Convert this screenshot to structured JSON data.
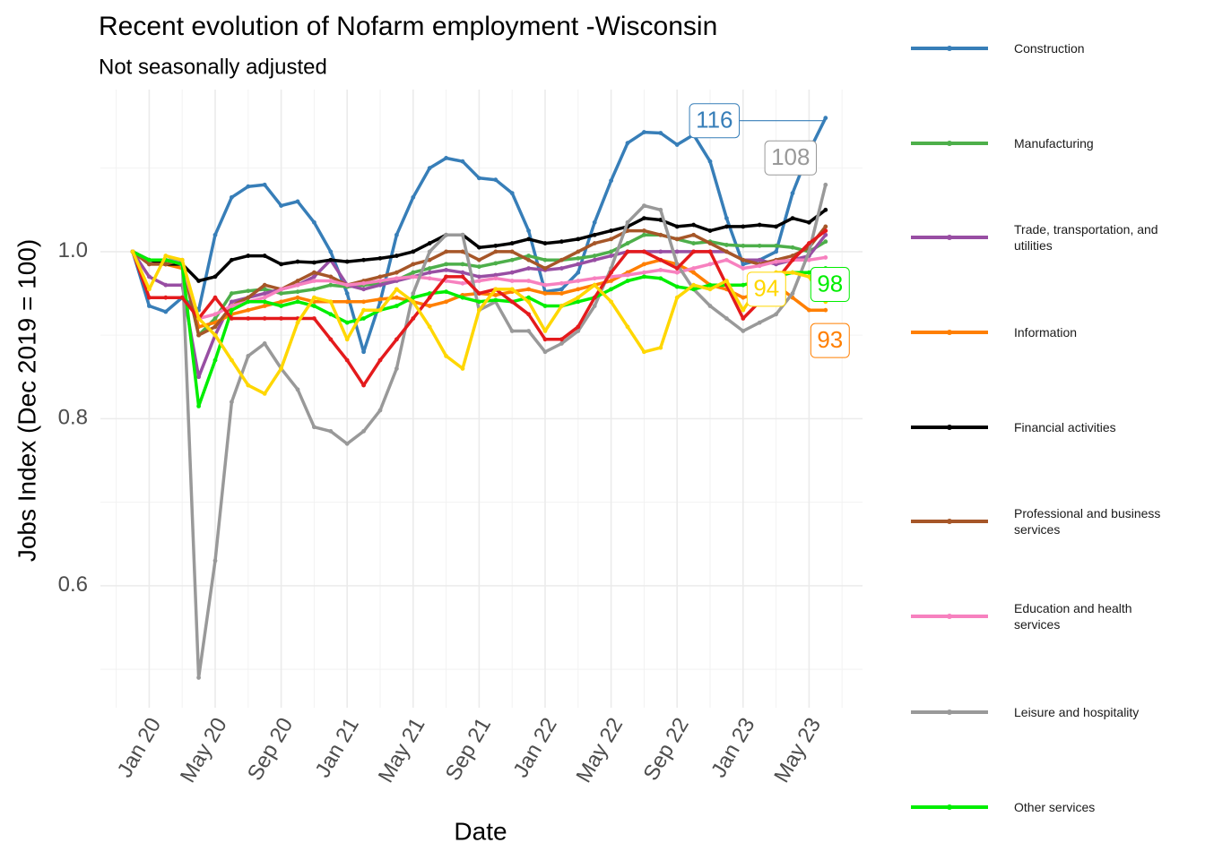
{
  "chart_data": {
    "type": "line",
    "title": "Recent evolution of Nofarm employment -Wisconsin",
    "subtitle": "Not seasonally adjusted",
    "x_label": "Date",
    "y_label": "Jobs Index (Dec 2019 = 100)",
    "x": [
      "2019-12",
      "2020-01",
      "2020-02",
      "2020-03",
      "2020-04",
      "2020-05",
      "2020-06",
      "2020-07",
      "2020-08",
      "2020-09",
      "2020-10",
      "2020-11",
      "2020-12",
      "2021-01",
      "2021-02",
      "2021-03",
      "2021-04",
      "2021-05",
      "2021-06",
      "2021-07",
      "2021-08",
      "2021-09",
      "2021-10",
      "2021-11",
      "2021-12",
      "2022-01",
      "2022-02",
      "2022-03",
      "2022-04",
      "2022-05",
      "2022-06",
      "2022-07",
      "2022-08",
      "2022-09",
      "2022-10",
      "2022-11",
      "2022-12",
      "2023-01",
      "2023-02",
      "2023-03",
      "2023-04",
      "2023-05",
      "2023-06"
    ],
    "xticks": [
      {
        "value": "2020-01",
        "label": "Jan 20"
      },
      {
        "value": "2020-05",
        "label": "May 20"
      },
      {
        "value": "2020-09",
        "label": "Sep 20"
      },
      {
        "value": "2021-01",
        "label": "Jan 21"
      },
      {
        "value": "2021-05",
        "label": "May 21"
      },
      {
        "value": "2021-09",
        "label": "Sep 21"
      },
      {
        "value": "2022-01",
        "label": "Jan 22"
      },
      {
        "value": "2022-05",
        "label": "May 22"
      },
      {
        "value": "2022-09",
        "label": "Sep 22"
      },
      {
        "value": "2023-01",
        "label": "Jan 23"
      },
      {
        "value": "2023-05",
        "label": "May 23"
      }
    ],
    "ylim": [
      0.454,
      1.194
    ],
    "yticks": [
      0.6,
      0.8,
      {
        "value": 1,
        "label": "1.0"
      }
    ],
    "minor_yticks": [
      0.5,
      0.7,
      0.9,
      1.1
    ],
    "grid": true,
    "legend": "right",
    "series": [
      {
        "name": "Construction",
        "color": "#377eb8",
        "end_label": "116",
        "values": [
          1.0,
          0.935,
          0.928,
          0.945,
          0.93,
          1.02,
          1.065,
          1.078,
          1.08,
          1.055,
          1.06,
          1.035,
          1.0,
          0.95,
          0.88,
          0.94,
          1.02,
          1.065,
          1.1,
          1.112,
          1.108,
          1.088,
          1.086,
          1.07,
          1.025,
          0.952,
          0.955,
          0.975,
          1.035,
          1.085,
          1.13,
          1.143,
          1.142,
          1.128,
          1.14,
          1.108,
          1.04,
          0.985,
          0.99,
          1.0,
          1.07,
          1.12,
          1.16
        ]
      },
      {
        "name": "Manufacturing",
        "color": "#4daf4a",
        "values": [
          1.0,
          0.99,
          0.99,
          0.985,
          0.9,
          0.92,
          0.95,
          0.953,
          0.955,
          0.95,
          0.952,
          0.955,
          0.96,
          0.958,
          0.96,
          0.962,
          0.966,
          0.975,
          0.98,
          0.985,
          0.985,
          0.982,
          0.986,
          0.99,
          0.995,
          0.99,
          0.99,
          0.992,
          0.995,
          1.0,
          1.01,
          1.02,
          1.02,
          1.015,
          1.01,
          1.012,
          1.008,
          1.007,
          1.007,
          1.007,
          1.005,
          1.0,
          1.012
        ]
      },
      {
        "name": "Trade, transportation, and utilities",
        "color": "#984ea3",
        "values": [
          1.0,
          0.97,
          0.96,
          0.96,
          0.85,
          0.9,
          0.94,
          0.945,
          0.95,
          0.955,
          0.96,
          0.97,
          0.99,
          0.96,
          0.955,
          0.96,
          0.965,
          0.97,
          0.975,
          0.978,
          0.975,
          0.97,
          0.972,
          0.975,
          0.98,
          0.978,
          0.98,
          0.985,
          0.99,
          0.995,
          1.0,
          1.0,
          1.0,
          1.0,
          1.0,
          1.0,
          1.0,
          0.99,
          0.99,
          0.985,
          0.99,
          0.995,
          1.02
        ]
      },
      {
        "name": "Information",
        "color": "#ff7f00",
        "end_label": "93",
        "values": [
          1.0,
          0.985,
          0.985,
          0.98,
          0.91,
          0.915,
          0.925,
          0.93,
          0.935,
          0.94,
          0.945,
          0.94,
          0.94,
          0.94,
          0.94,
          0.943,
          0.945,
          0.94,
          0.935,
          0.94,
          0.948,
          0.95,
          0.948,
          0.952,
          0.955,
          0.95,
          0.95,
          0.955,
          0.96,
          0.965,
          0.975,
          0.985,
          0.99,
          0.985,
          0.975,
          0.96,
          0.955,
          0.945,
          0.95,
          0.96,
          0.945,
          0.93,
          0.93
        ]
      },
      {
        "name": "Financial activities",
        "color": "#000000",
        "values": [
          1.0,
          0.99,
          0.985,
          0.985,
          0.965,
          0.97,
          0.99,
          0.995,
          0.995,
          0.985,
          0.988,
          0.987,
          0.99,
          0.988,
          0.99,
          0.992,
          0.995,
          1.0,
          1.01,
          1.02,
          1.02,
          1.005,
          1.007,
          1.01,
          1.015,
          1.01,
          1.012,
          1.015,
          1.02,
          1.025,
          1.03,
          1.04,
          1.038,
          1.03,
          1.032,
          1.025,
          1.03,
          1.03,
          1.032,
          1.03,
          1.04,
          1.035,
          1.05
        ]
      },
      {
        "name": "Professional and business services",
        "color": "#a65628",
        "values": [
          1.0,
          0.985,
          0.985,
          0.99,
          0.9,
          0.91,
          0.935,
          0.945,
          0.96,
          0.955,
          0.965,
          0.975,
          0.97,
          0.96,
          0.965,
          0.97,
          0.975,
          0.985,
          0.99,
          1.0,
          1.0,
          0.99,
          1.0,
          1.0,
          0.99,
          0.98,
          0.99,
          1.0,
          1.01,
          1.015,
          1.025,
          1.025,
          1.02,
          1.015,
          1.02,
          1.01,
          1.0,
          0.99,
          0.985,
          0.99,
          0.995,
          1.005,
          1.03
        ]
      },
      {
        "name": "Education and health services",
        "color": "#f781bf",
        "values": [
          1.0,
          0.99,
          0.99,
          0.985,
          0.92,
          0.925,
          0.935,
          0.94,
          0.945,
          0.955,
          0.96,
          0.965,
          0.965,
          0.96,
          0.962,
          0.965,
          0.968,
          0.97,
          0.968,
          0.965,
          0.962,
          0.965,
          0.968,
          0.965,
          0.965,
          0.96,
          0.962,
          0.965,
          0.968,
          0.97,
          0.972,
          0.975,
          0.978,
          0.975,
          0.98,
          0.985,
          0.99,
          0.98,
          0.983,
          0.988,
          0.99,
          0.99,
          0.993
        ]
      },
      {
        "name": "Leisure and hospitality",
        "color": "#999999",
        "end_label": "108",
        "values": [
          1.0,
          0.99,
          0.99,
          0.99,
          0.49,
          0.63,
          0.82,
          0.875,
          0.89,
          0.86,
          0.835,
          0.79,
          0.785,
          0.77,
          0.785,
          0.81,
          0.86,
          0.95,
          1.0,
          1.02,
          1.02,
          0.93,
          0.94,
          0.905,
          0.905,
          0.88,
          0.89,
          0.905,
          0.935,
          0.98,
          1.035,
          1.055,
          1.05,
          0.985,
          0.955,
          0.935,
          0.92,
          0.905,
          0.915,
          0.925,
          0.95,
          1.0,
          1.08
        ]
      },
      {
        "name": "Other services",
        "color": "#00ee00",
        "end_label": "98",
        "values": [
          1.0,
          0.99,
          0.99,
          0.985,
          0.815,
          0.87,
          0.93,
          0.94,
          0.94,
          0.935,
          0.94,
          0.935,
          0.925,
          0.915,
          0.92,
          0.93,
          0.935,
          0.945,
          0.95,
          0.952,
          0.945,
          0.94,
          0.942,
          0.94,
          0.945,
          0.935,
          0.935,
          0.94,
          0.945,
          0.955,
          0.965,
          0.97,
          0.968,
          0.958,
          0.955,
          0.96,
          0.96,
          0.96,
          0.965,
          0.97,
          0.975,
          0.975,
          0.98
        ]
      },
      {
        "color": "#e41a1c",
        "values": [
          1.0,
          0.945,
          0.945,
          0.945,
          0.92,
          0.945,
          0.92,
          0.92,
          0.92,
          0.92,
          0.92,
          0.92,
          0.895,
          0.87,
          0.84,
          0.87,
          0.895,
          0.92,
          0.945,
          0.97,
          0.97,
          0.95,
          0.955,
          0.94,
          0.925,
          0.895,
          0.895,
          0.91,
          0.945,
          0.975,
          1.0,
          1.0,
          0.99,
          0.98,
          1.0,
          1.0,
          0.96,
          0.92,
          0.94,
          0.965,
          0.99,
          1.01,
          1.025
        ]
      },
      {
        "color": "#ffd700",
        "end_label": "94",
        "values": [
          1.0,
          0.955,
          0.995,
          0.99,
          0.92,
          0.9,
          0.87,
          0.84,
          0.83,
          0.86,
          0.915,
          0.945,
          0.94,
          0.895,
          0.93,
          0.93,
          0.955,
          0.94,
          0.91,
          0.875,
          0.86,
          0.93,
          0.955,
          0.955,
          0.94,
          0.905,
          0.935,
          0.945,
          0.96,
          0.94,
          0.91,
          0.88,
          0.885,
          0.945,
          0.96,
          0.955,
          0.965,
          0.93,
          0.96,
          0.975,
          0.975,
          0.97,
          0.94
        ]
      }
    ]
  }
}
